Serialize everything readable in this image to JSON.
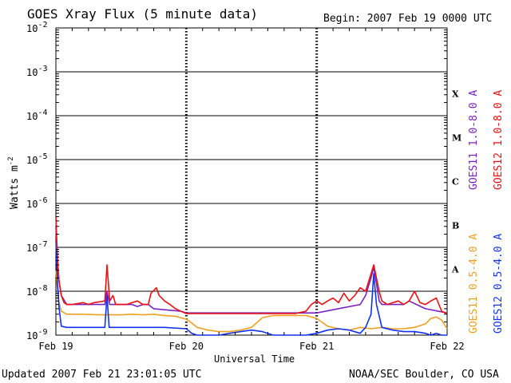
{
  "page": {
    "title": "GOES Xray Flux (5 minute data)",
    "begin_label": "Begin:  2007 Feb 19 0000 UTC",
    "updated": "Updated 2007 Feb 21 23:01:05 UTC",
    "credit": "NOAA/SEC Boulder, CO USA"
  },
  "chart_data": {
    "type": "line",
    "title": "GOES Xray Flux (5 minute data)",
    "xlabel": "Universal Time",
    "ylabel": "Watts m",
    "ylabel_superscript": "-2",
    "y_scale": "log",
    "ylim": [
      1e-09,
      0.01
    ],
    "x_units": "hours since 2007 Feb 19 0000 UTC",
    "xlim": [
      0,
      72
    ],
    "x_ticks": [
      {
        "x": 0,
        "label": "Feb 19"
      },
      {
        "x": 24,
        "label": "Feb 20"
      },
      {
        "x": 48,
        "label": "Feb 21"
      },
      {
        "x": 72,
        "label": "Feb 22"
      }
    ],
    "y_ticks": [
      {
        "exp": -2,
        "base": "10",
        "sup": "-2"
      },
      {
        "exp": -3,
        "base": "10",
        "sup": "-3"
      },
      {
        "exp": -4,
        "base": "10",
        "sup": "-4"
      },
      {
        "exp": -5,
        "base": "10",
        "sup": "-5"
      },
      {
        "exp": -6,
        "base": "10",
        "sup": "-6"
      },
      {
        "exp": -7,
        "base": "10",
        "sup": "-7"
      },
      {
        "exp": -8,
        "base": "10",
        "sup": "-8"
      },
      {
        "exp": -9,
        "base": "10",
        "sup": "-9"
      }
    ],
    "flare_classes": [
      {
        "label": "X",
        "exp": -4
      },
      {
        "label": "M",
        "exp": -5
      },
      {
        "label": "C",
        "exp": -6
      },
      {
        "label": "B",
        "exp": -7
      },
      {
        "label": "A",
        "exp": -8
      }
    ],
    "grid": true,
    "legend_right": [
      {
        "text": "GOES11 1.0-8.0 A",
        "color": "#7a22c8"
      },
      {
        "text": "GOES12 1.0-8.0 A",
        "color": "#ee1111"
      },
      {
        "text": "GOES11 0.5-4.0 A",
        "color": "#f0a020"
      },
      {
        "text": "GOES12 0.5-4.0 A",
        "color": "#1133ee"
      }
    ],
    "series": [
      {
        "name": "GOES12 1.0-8.0 A",
        "color": "#ee1111",
        "x": [
          0,
          0.3,
          0.6,
          1,
          1.5,
          2,
          3,
          5,
          6,
          7,
          9,
          9.4,
          9.9,
          10.5,
          11,
          12,
          13,
          14,
          15,
          16,
          17,
          17.5,
          18.5,
          19,
          20,
          21,
          22,
          23,
          24,
          26,
          30,
          36,
          40,
          44,
          46,
          47,
          48,
          49,
          50,
          51,
          52,
          53,
          54,
          55,
          56,
          57,
          58,
          58.5,
          59,
          59.5,
          60,
          61,
          62,
          63,
          64,
          65,
          66,
          67,
          68,
          69,
          70,
          71,
          72
        ],
        "y": [
          5e-07,
          5e-08,
          1.6e-08,
          8e-09,
          5.5e-09,
          5e-09,
          5e-09,
          5.5e-09,
          5e-09,
          5.5e-09,
          6e-09,
          4e-08,
          6e-09,
          8e-09,
          5e-09,
          5e-09,
          5e-09,
          5.5e-09,
          6e-09,
          5e-09,
          5e-09,
          9e-09,
          1.2e-08,
          8e-09,
          6e-09,
          5e-09,
          4e-09,
          3.5e-09,
          3.1e-09,
          3.1e-09,
          3.1e-09,
          3.1e-09,
          3.1e-09,
          3.1e-09,
          3.5e-09,
          5e-09,
          6e-09,
          5e-09,
          6e-09,
          7e-09,
          5.5e-09,
          9e-09,
          6e-09,
          8e-09,
          1.2e-08,
          1e-08,
          2.5e-08,
          4e-08,
          2e-08,
          1e-08,
          6e-09,
          5e-09,
          5.5e-09,
          6e-09,
          5e-09,
          6e-09,
          1e-08,
          5.5e-09,
          5e-09,
          6e-09,
          7e-09,
          3.5e-09,
          3.1e-09
        ]
      },
      {
        "name": "GOES11 1.0-8.0 A",
        "color": "#7a22c8",
        "x": [
          0,
          0.5,
          1,
          2,
          5,
          9,
          9.4,
          9.9,
          14,
          15,
          16,
          17,
          18,
          23,
          24,
          48,
          56,
          57,
          58,
          58.5,
          59,
          59.5,
          60,
          64,
          65,
          68,
          72
        ],
        "y": [
          3e-07,
          2e-08,
          8e-09,
          5e-09,
          5e-09,
          5e-09,
          1e-08,
          5e-09,
          5e-09,
          4.5e-09,
          5e-09,
          5e-09,
          4e-09,
          3.5e-09,
          3.2e-09,
          3.2e-09,
          5e-09,
          8e-09,
          2e-08,
          3.5e-08,
          1.5e-08,
          6e-09,
          5e-09,
          5e-09,
          6e-09,
          4e-09,
          3.2e-09
        ]
      },
      {
        "name": "GOES11 0.5-4.0 A",
        "color": "#f0a020",
        "x": [
          0,
          0.5,
          1,
          2,
          5,
          8,
          10,
          12,
          14,
          16,
          18,
          20,
          22,
          24,
          25,
          26,
          28,
          30,
          32,
          34,
          36,
          38,
          40,
          42,
          44,
          46,
          47,
          48,
          50,
          52,
          54,
          56,
          58,
          60,
          62,
          64,
          66,
          68,
          69,
          70,
          71,
          72
        ],
        "y": [
          3e-08,
          6e-09,
          3.5e-09,
          3e-09,
          3e-09,
          2.9e-09,
          2.9e-09,
          2.9e-09,
          3e-09,
          2.9e-09,
          3e-09,
          2.8e-09,
          2.7e-09,
          2.3e-09,
          1.9e-09,
          1.5e-09,
          1.3e-09,
          1.2e-09,
          1.2e-09,
          1.3e-09,
          1.5e-09,
          2.5e-09,
          2.8e-09,
          2.8e-09,
          2.8e-09,
          2.8e-09,
          2.6e-09,
          2.4e-09,
          1.6e-09,
          1.4e-09,
          1.3e-09,
          1.5e-09,
          1.4e-09,
          1.5e-09,
          1.4e-09,
          1.4e-09,
          1.5e-09,
          1.8e-09,
          2.4e-09,
          2.6e-09,
          2.2e-09,
          1.4e-09
        ]
      },
      {
        "name": "GOES12 0.5-4.0 A",
        "color": "#1133ee",
        "x": [
          0,
          0.3,
          0.6,
          1,
          2,
          5,
          9,
          9.4,
          9.8,
          12,
          16,
          20,
          24,
          25,
          26,
          28,
          30,
          32,
          34,
          36,
          38,
          40,
          42,
          44,
          46,
          48,
          50,
          52,
          54,
          56,
          57,
          58,
          58.5,
          59,
          60,
          62,
          64,
          66,
          68,
          69,
          70,
          71,
          72
        ],
        "y": [
          1.5e-07,
          1.5e-08,
          4e-09,
          1.6e-09,
          1.5e-09,
          1.5e-09,
          1.5e-09,
          8e-09,
          1.5e-09,
          1.5e-09,
          1.5e-09,
          1.5e-09,
          1.4e-09,
          1.1e-09,
          1e-09,
          1e-09,
          1e-09,
          1.1e-09,
          1.2e-09,
          1.3e-09,
          1.2e-09,
          1e-09,
          1e-09,
          1e-09,
          1e-09,
          1.1e-09,
          1.3e-09,
          1.4e-09,
          1.3e-09,
          1.1e-09,
          1.5e-09,
          3e-09,
          2.5e-08,
          5e-09,
          1.5e-09,
          1.3e-09,
          1.2e-09,
          1.2e-09,
          1.1e-09,
          1e-09,
          1.1e-09,
          1e-09,
          1e-09
        ]
      }
    ]
  }
}
